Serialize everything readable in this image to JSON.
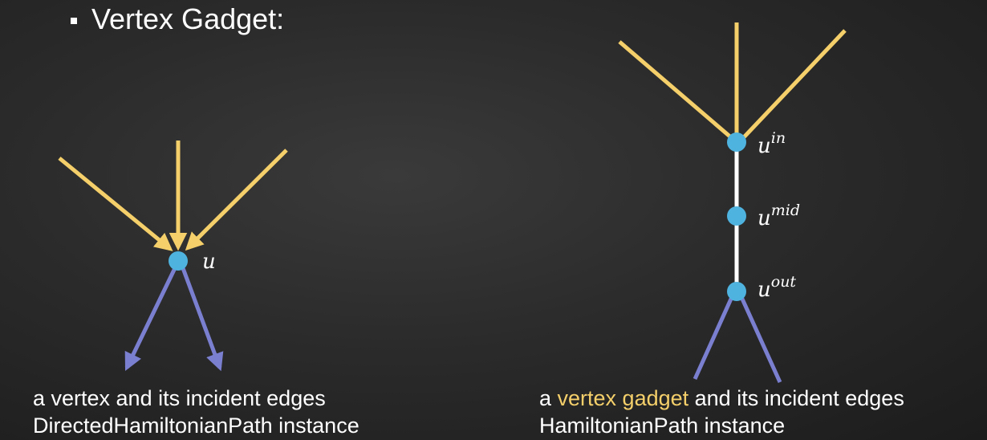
{
  "title": "Vertex Gadget:",
  "left": {
    "vertex_label": "u",
    "caption_line1": "a vertex and its incident edges",
    "caption_line2": "DirectedHamiltonianPath instance"
  },
  "right": {
    "vertex_base": "u",
    "label_in": "in",
    "label_mid": "mid",
    "label_out": "out",
    "caption_prefix": "a ",
    "caption_highlight": "vertex gadget",
    "caption_suffix": " and its incident edges",
    "caption_line2": "HamiltonianPath instance"
  },
  "colors": {
    "incoming_edge": "#f4cf6a",
    "outgoing_edge": "#7b7fd0",
    "vertex": "#4fb3e0",
    "gadget_edge": "#ffffff",
    "highlight": "#f4cf6a"
  }
}
